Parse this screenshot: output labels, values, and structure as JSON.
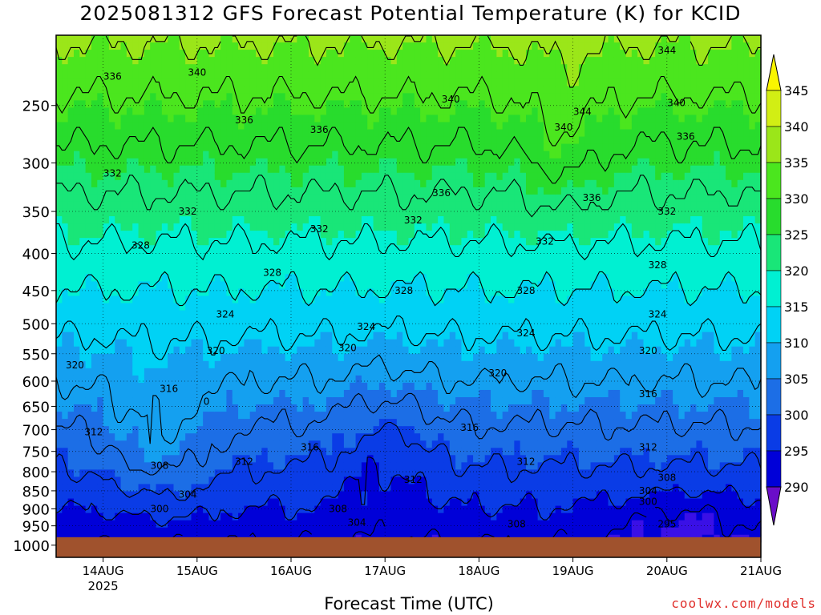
{
  "chart_data": {
    "type": "heatmap",
    "title": "2025081312 GFS Forecast Potential Temperature (K) for KCID",
    "xlabel": "Forecast Time (UTC)",
    "ylabel": "",
    "x_tick_labels": [
      "14AUG",
      "15AUG",
      "16AUG",
      "17AUG",
      "18AUG",
      "19AUG",
      "20AUG",
      "21AUG"
    ],
    "x_tick_sublabel": "2025",
    "y_axis": {
      "scale": "log-pressure",
      "inverted": true,
      "range": [
        1000,
        200
      ]
    },
    "y_ticks": [
      250,
      300,
      350,
      400,
      450,
      500,
      550,
      600,
      650,
      700,
      750,
      800,
      850,
      900,
      950,
      1000
    ],
    "grid": true,
    "colorbar": {
      "location": "right",
      "tick_labels": [
        345,
        340,
        335,
        330,
        325,
        320,
        315,
        310,
        305,
        300,
        295,
        290
      ],
      "colors": [
        "#6a0dc8",
        "#3a10e6",
        "#0000d8",
        "#0a3ce6",
        "#1c6ee6",
        "#14a0f0",
        "#00d2f5",
        "#00f0d2",
        "#19e678",
        "#28dc2d",
        "#4be61e",
        "#9be619",
        "#d2ee14",
        "#faf500"
      ]
    },
    "contour_levels": [
      296,
      300,
      304,
      308,
      312,
      316,
      320,
      324,
      328,
      332,
      336,
      340,
      344
    ],
    "contour_labels": [
      {
        "text": "336",
        "x_day": 14.1,
        "p": 228
      },
      {
        "text": "340",
        "x_day": 15.0,
        "p": 225
      },
      {
        "text": "336",
        "x_day": 15.5,
        "p": 262
      },
      {
        "text": "336",
        "x_day": 16.3,
        "p": 270
      },
      {
        "text": "340",
        "x_day": 17.7,
        "p": 245
      },
      {
        "text": "344",
        "x_day": 19.1,
        "p": 255
      },
      {
        "text": "340",
        "x_day": 18.9,
        "p": 268
      },
      {
        "text": "344",
        "x_day": 20.0,
        "p": 210
      },
      {
        "text": "340",
        "x_day": 20.1,
        "p": 248
      },
      {
        "text": "336",
        "x_day": 20.2,
        "p": 276
      },
      {
        "text": "332",
        "x_day": 14.1,
        "p": 310
      },
      {
        "text": "332",
        "x_day": 14.9,
        "p": 350
      },
      {
        "text": "332",
        "x_day": 16.3,
        "p": 370
      },
      {
        "text": "332",
        "x_day": 17.3,
        "p": 360
      },
      {
        "text": "336",
        "x_day": 17.6,
        "p": 330
      },
      {
        "text": "332",
        "x_day": 18.7,
        "p": 385
      },
      {
        "text": "336",
        "x_day": 19.2,
        "p": 335
      },
      {
        "text": "332",
        "x_day": 20.0,
        "p": 350
      },
      {
        "text": "328",
        "x_day": 14.4,
        "p": 390
      },
      {
        "text": "328",
        "x_day": 15.8,
        "p": 425
      },
      {
        "text": "328",
        "x_day": 17.2,
        "p": 450
      },
      {
        "text": "328",
        "x_day": 18.5,
        "p": 450
      },
      {
        "text": "328",
        "x_day": 19.9,
        "p": 415
      },
      {
        "text": "324",
        "x_day": 15.3,
        "p": 485
      },
      {
        "text": "324",
        "x_day": 16.8,
        "p": 505
      },
      {
        "text": "324",
        "x_day": 18.5,
        "p": 515
      },
      {
        "text": "324",
        "x_day": 19.9,
        "p": 485
      },
      {
        "text": "320",
        "x_day": 13.7,
        "p": 570
      },
      {
        "text": "320",
        "x_day": 15.2,
        "p": 545
      },
      {
        "text": "320",
        "x_day": 16.6,
        "p": 540
      },
      {
        "text": "320",
        "x_day": 18.2,
        "p": 585
      },
      {
        "text": "320",
        "x_day": 19.8,
        "p": 545
      },
      {
        "text": "316",
        "x_day": 14.7,
        "p": 615
      },
      {
        "text": "316",
        "x_day": 17.9,
        "p": 695
      },
      {
        "text": "316",
        "x_day": 19.8,
        "p": 625
      },
      {
        "text": "316",
        "x_day": 16.2,
        "p": 740
      },
      {
        "text": "0",
        "x_day": 15.1,
        "p": 640
      },
      {
        "text": "312",
        "x_day": 13.9,
        "p": 705
      },
      {
        "text": "312",
        "x_day": 15.5,
        "p": 775
      },
      {
        "text": "312",
        "x_day": 17.3,
        "p": 820
      },
      {
        "text": "312",
        "x_day": 18.5,
        "p": 775
      },
      {
        "text": "312",
        "x_day": 19.8,
        "p": 740
      },
      {
        "text": "308",
        "x_day": 14.6,
        "p": 785
      },
      {
        "text": "308",
        "x_day": 20.0,
        "p": 815
      },
      {
        "text": "304",
        "x_day": 14.9,
        "p": 860
      },
      {
        "text": "304",
        "x_day": 19.8,
        "p": 850
      },
      {
        "text": "300",
        "x_day": 14.6,
        "p": 900
      },
      {
        "text": "300",
        "x_day": 19.8,
        "p": 880
      },
      {
        "text": "308",
        "x_day": 16.5,
        "p": 900
      },
      {
        "text": "304",
        "x_day": 16.7,
        "p": 940
      },
      {
        "text": "308",
        "x_day": 18.4,
        "p": 945
      },
      {
        "text": "295",
        "x_day": 20.0,
        "p": 945
      }
    ],
    "ground_color": "#a0522d"
  },
  "credit": "coolwx.com/models"
}
